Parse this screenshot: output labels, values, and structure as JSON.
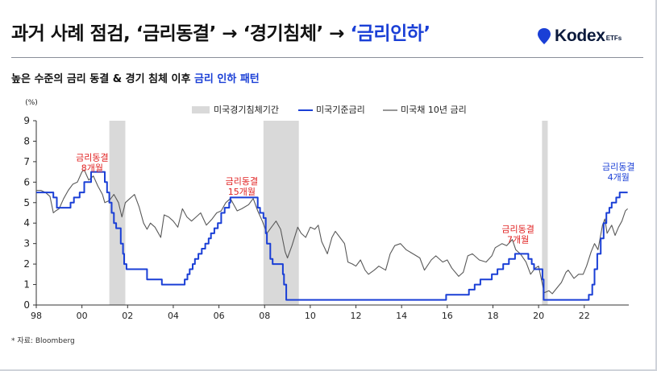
{
  "header": {
    "title_main": "과거 사례 점검, ‘금리동결’ → ‘경기침체’ → ",
    "title_highlight": "‘금리인하’",
    "logo_brand": "Kodex",
    "logo_sub": "ETFs",
    "subtitle_main": "높은 수준의 금리 동결 & 경기 침체 이후 ",
    "subtitle_highlight": "금리 인하 패턴"
  },
  "footer": {
    "source": "* 자료: Bloomberg"
  },
  "colors": {
    "accent": "#1a3fd6",
    "recession": "#d9d9d9",
    "treasury": "#595959",
    "annotation": "#e02020"
  },
  "chart_data": {
    "type": "line",
    "ylabel": "(%)",
    "ylim": [
      0,
      9
    ],
    "xlim": [
      1998,
      2023.95
    ],
    "y_ticks": [
      0,
      1,
      2,
      3,
      4,
      5,
      6,
      7,
      8,
      9
    ],
    "x_ticks": [
      1998,
      2000,
      2002,
      2004,
      2006,
      2008,
      2010,
      2012,
      2014,
      2016,
      2018,
      2020,
      2022
    ],
    "x_tick_labels": [
      "98",
      "00",
      "02",
      "04",
      "06",
      "08",
      "10",
      "12",
      "14",
      "16",
      "18",
      "20",
      "22"
    ],
    "legend": {
      "placement": "top",
      "items": [
        "미국경기침체기간",
        "미국기준금리",
        "미국채 10년 금리"
      ]
    },
    "recessions": [
      [
        2001.2,
        2001.9
      ],
      [
        2007.95,
        2009.5
      ],
      [
        2020.15,
        2020.4
      ]
    ],
    "series": [
      {
        "name": "미국기준금리",
        "color": "#1a3fd6",
        "step": true,
        "points": [
          [
            1998.0,
            5.5
          ],
          [
            1998.75,
            5.25
          ],
          [
            1998.9,
            4.75
          ],
          [
            1999.5,
            5.0
          ],
          [
            1999.65,
            5.25
          ],
          [
            1999.9,
            5.5
          ],
          [
            2000.1,
            6.0
          ],
          [
            2000.4,
            6.5
          ],
          [
            2001.0,
            6.0
          ],
          [
            2001.1,
            5.5
          ],
          [
            2001.2,
            5.0
          ],
          [
            2001.3,
            4.5
          ],
          [
            2001.4,
            4.0
          ],
          [
            2001.5,
            3.75
          ],
          [
            2001.7,
            3.0
          ],
          [
            2001.8,
            2.5
          ],
          [
            2001.85,
            2.0
          ],
          [
            2001.95,
            1.75
          ],
          [
            2002.85,
            1.25
          ],
          [
            2003.5,
            1.0
          ],
          [
            2004.5,
            1.25
          ],
          [
            2004.62,
            1.5
          ],
          [
            2004.72,
            1.75
          ],
          [
            2004.85,
            2.0
          ],
          [
            2004.95,
            2.25
          ],
          [
            2005.1,
            2.5
          ],
          [
            2005.25,
            2.75
          ],
          [
            2005.4,
            3.0
          ],
          [
            2005.55,
            3.25
          ],
          [
            2005.65,
            3.5
          ],
          [
            2005.8,
            3.75
          ],
          [
            2005.95,
            4.0
          ],
          [
            2006.1,
            4.5
          ],
          [
            2006.25,
            4.75
          ],
          [
            2006.45,
            5.0
          ],
          [
            2006.5,
            5.25
          ],
          [
            2007.7,
            4.75
          ],
          [
            2007.8,
            4.5
          ],
          [
            2007.95,
            4.25
          ],
          [
            2008.05,
            3.5
          ],
          [
            2008.1,
            3.0
          ],
          [
            2008.25,
            2.25
          ],
          [
            2008.35,
            2.0
          ],
          [
            2008.8,
            1.5
          ],
          [
            2008.85,
            1.0
          ],
          [
            2008.95,
            0.25
          ],
          [
            2015.95,
            0.5
          ],
          [
            2016.95,
            0.75
          ],
          [
            2017.2,
            1.0
          ],
          [
            2017.45,
            1.25
          ],
          [
            2017.95,
            1.5
          ],
          [
            2018.2,
            1.75
          ],
          [
            2018.45,
            2.0
          ],
          [
            2018.7,
            2.25
          ],
          [
            2018.97,
            2.5
          ],
          [
            2019.55,
            2.25
          ],
          [
            2019.7,
            2.0
          ],
          [
            2019.8,
            1.75
          ],
          [
            2020.17,
            1.25
          ],
          [
            2020.22,
            0.25
          ],
          [
            2022.2,
            0.5
          ],
          [
            2022.35,
            1.0
          ],
          [
            2022.45,
            1.75
          ],
          [
            2022.57,
            2.5
          ],
          [
            2022.72,
            3.25
          ],
          [
            2022.85,
            4.0
          ],
          [
            2022.97,
            4.5
          ],
          [
            2023.1,
            4.75
          ],
          [
            2023.2,
            5.0
          ],
          [
            2023.4,
            5.25
          ],
          [
            2023.55,
            5.5
          ],
          [
            2023.9,
            5.5
          ]
        ]
      },
      {
        "name": "미국채 10년 금리",
        "color": "#595959",
        "step": false,
        "points": [
          [
            1998.0,
            5.6
          ],
          [
            1998.2,
            5.6
          ],
          [
            1998.4,
            5.5
          ],
          [
            1998.6,
            5.3
          ],
          [
            1998.75,
            4.5
          ],
          [
            1998.85,
            4.6
          ],
          [
            1999.0,
            4.7
          ],
          [
            1999.2,
            5.2
          ],
          [
            1999.4,
            5.6
          ],
          [
            1999.6,
            5.9
          ],
          [
            1999.8,
            6.0
          ],
          [
            2000.0,
            6.5
          ],
          [
            2000.1,
            6.6
          ],
          [
            2000.3,
            6.1
          ],
          [
            2000.5,
            6.3
          ],
          [
            2000.7,
            5.8
          ],
          [
            2000.9,
            5.4
          ],
          [
            2001.0,
            5.0
          ],
          [
            2001.2,
            5.1
          ],
          [
            2001.4,
            5.4
          ],
          [
            2001.6,
            5.0
          ],
          [
            2001.75,
            4.3
          ],
          [
            2001.9,
            5.0
          ],
          [
            2002.1,
            5.2
          ],
          [
            2002.3,
            5.4
          ],
          [
            2002.5,
            4.8
          ],
          [
            2002.7,
            4.0
          ],
          [
            2002.85,
            3.7
          ],
          [
            2003.0,
            4.0
          ],
          [
            2003.2,
            3.8
          ],
          [
            2003.45,
            3.3
          ],
          [
            2003.6,
            4.4
          ],
          [
            2003.8,
            4.3
          ],
          [
            2004.0,
            4.1
          ],
          [
            2004.2,
            3.8
          ],
          [
            2004.4,
            4.7
          ],
          [
            2004.6,
            4.3
          ],
          [
            2004.8,
            4.1
          ],
          [
            2005.0,
            4.3
          ],
          [
            2005.2,
            4.5
          ],
          [
            2005.45,
            3.9
          ],
          [
            2005.7,
            4.2
          ],
          [
            2005.9,
            4.5
          ],
          [
            2006.1,
            4.6
          ],
          [
            2006.3,
            5.0
          ],
          [
            2006.5,
            5.2
          ],
          [
            2006.8,
            4.6
          ],
          [
            2007.0,
            4.7
          ],
          [
            2007.3,
            4.9
          ],
          [
            2007.5,
            5.2
          ],
          [
            2007.7,
            4.6
          ],
          [
            2007.9,
            4.1
          ],
          [
            2008.1,
            3.5
          ],
          [
            2008.3,
            3.8
          ],
          [
            2008.5,
            4.1
          ],
          [
            2008.7,
            3.7
          ],
          [
            2008.9,
            2.6
          ],
          [
            2009.0,
            2.3
          ],
          [
            2009.2,
            2.9
          ],
          [
            2009.45,
            3.8
          ],
          [
            2009.6,
            3.5
          ],
          [
            2009.8,
            3.3
          ],
          [
            2010.0,
            3.8
          ],
          [
            2010.2,
            3.7
          ],
          [
            2010.35,
            3.9
          ],
          [
            2010.5,
            3.1
          ],
          [
            2010.75,
            2.5
          ],
          [
            2010.95,
            3.3
          ],
          [
            2011.1,
            3.6
          ],
          [
            2011.3,
            3.3
          ],
          [
            2011.5,
            3.0
          ],
          [
            2011.65,
            2.1
          ],
          [
            2011.85,
            2.0
          ],
          [
            2012.0,
            1.9
          ],
          [
            2012.2,
            2.2
          ],
          [
            2012.4,
            1.7
          ],
          [
            2012.55,
            1.5
          ],
          [
            2012.8,
            1.7
          ],
          [
            2013.0,
            1.9
          ],
          [
            2013.3,
            1.7
          ],
          [
            2013.5,
            2.5
          ],
          [
            2013.7,
            2.9
          ],
          [
            2013.95,
            3.0
          ],
          [
            2014.2,
            2.7
          ],
          [
            2014.5,
            2.5
          ],
          [
            2014.8,
            2.3
          ],
          [
            2015.0,
            1.7
          ],
          [
            2015.3,
            2.2
          ],
          [
            2015.5,
            2.4
          ],
          [
            2015.8,
            2.1
          ],
          [
            2016.0,
            2.2
          ],
          [
            2016.2,
            1.8
          ],
          [
            2016.5,
            1.4
          ],
          [
            2016.7,
            1.6
          ],
          [
            2016.9,
            2.4
          ],
          [
            2017.1,
            2.5
          ],
          [
            2017.4,
            2.2
          ],
          [
            2017.7,
            2.1
          ],
          [
            2017.95,
            2.4
          ],
          [
            2018.1,
            2.8
          ],
          [
            2018.4,
            3.0
          ],
          [
            2018.6,
            2.9
          ],
          [
            2018.85,
            3.2
          ],
          [
            2019.0,
            2.7
          ],
          [
            2019.2,
            2.5
          ],
          [
            2019.45,
            2.1
          ],
          [
            2019.65,
            1.5
          ],
          [
            2019.85,
            1.8
          ],
          [
            2020.0,
            1.9
          ],
          [
            2020.15,
            1.1
          ],
          [
            2020.25,
            0.6
          ],
          [
            2020.45,
            0.7
          ],
          [
            2020.6,
            0.55
          ],
          [
            2020.85,
            0.9
          ],
          [
            2021.0,
            1.1
          ],
          [
            2021.2,
            1.6
          ],
          [
            2021.3,
            1.7
          ],
          [
            2021.55,
            1.3
          ],
          [
            2021.75,
            1.5
          ],
          [
            2021.95,
            1.5
          ],
          [
            2022.1,
            1.9
          ],
          [
            2022.3,
            2.6
          ],
          [
            2022.45,
            3.0
          ],
          [
            2022.6,
            2.7
          ],
          [
            2022.8,
            3.9
          ],
          [
            2022.9,
            4.2
          ],
          [
            2023.0,
            3.5
          ],
          [
            2023.2,
            3.9
          ],
          [
            2023.35,
            3.4
          ],
          [
            2023.5,
            3.8
          ],
          [
            2023.65,
            4.1
          ],
          [
            2023.8,
            4.6
          ],
          [
            2023.9,
            4.7
          ]
        ]
      }
    ],
    "annotations": [
      {
        "lines": [
          "금리동결",
          "8개월"
        ],
        "x": 2000.45,
        "y": 7.05,
        "color": "#e02020"
      },
      {
        "lines": [
          "금리동결",
          "15개월"
        ],
        "x": 2007.0,
        "y": 5.9,
        "color": "#e02020"
      },
      {
        "lines": [
          "금리동결",
          "7개월"
        ],
        "x": 2019.1,
        "y": 3.55,
        "color": "#e02020"
      },
      {
        "lines": [
          "금리동결",
          "4개월"
        ],
        "x": 2023.5,
        "y": 6.6,
        "color": "#1a3fd6"
      }
    ]
  }
}
